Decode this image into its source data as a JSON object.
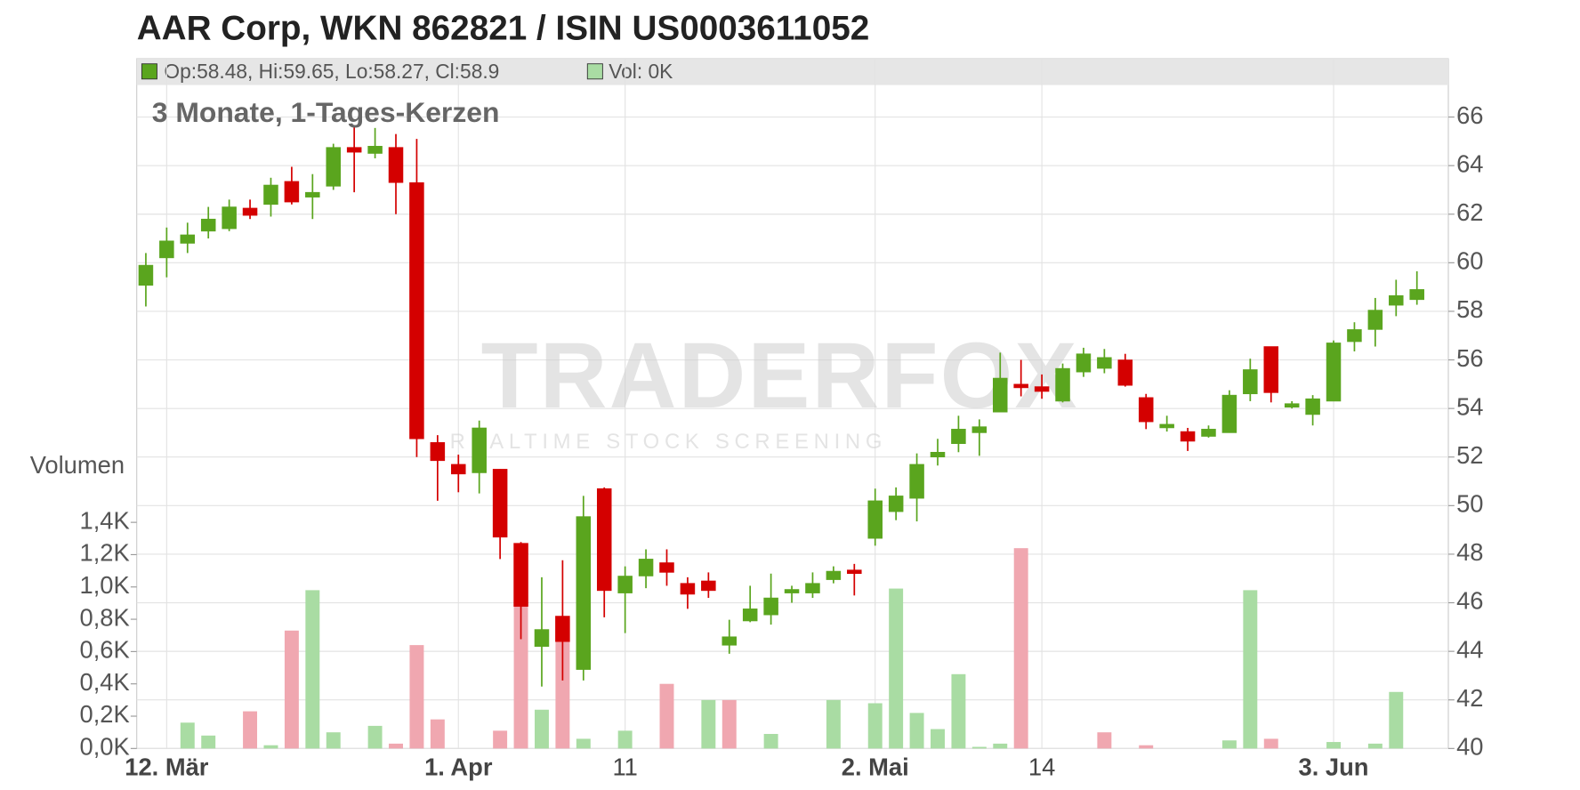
{
  "chart_data": {
    "type": "candlestick",
    "title": "AAR Corp, WKN 862821 / ISIN US0003611052",
    "subtitle": "3 Monate, 1-Tages-Kerzen",
    "legend": {
      "ohlc": "Op:58.48, Hi:59.65, Lo:58.27, Cl:58.9",
      "volume": "Vol: 0K"
    },
    "volume_label": "Volumen",
    "watermark": {
      "logo": "TRADERFOX",
      "tagline": "REALTIME STOCK SCREENING"
    },
    "categories": [
      null,
      "12. Mär",
      null,
      null,
      null,
      null,
      null,
      null,
      null,
      null,
      null,
      null,
      null,
      null,
      null,
      "1. Apr",
      null,
      null,
      null,
      null,
      null,
      null,
      null,
      "11",
      null,
      null,
      null,
      null,
      null,
      null,
      null,
      null,
      null,
      null,
      null,
      "2. Mai",
      null,
      null,
      null,
      null,
      null,
      null,
      null,
      "14",
      null,
      null,
      null,
      null,
      null,
      null,
      null,
      null,
      null,
      null,
      null,
      null,
      null,
      "3. Jun",
      null,
      null,
      null,
      null
    ],
    "open": [
      59.07,
      60.2,
      60.8,
      61.3,
      61.4,
      62.25,
      62.4,
      63.35,
      62.7,
      63.15,
      64.75,
      64.5,
      64.75,
      63.3,
      52.6,
      51.7,
      51.35,
      51.5,
      48.45,
      44.2,
      45.45,
      43.25,
      50.7,
      46.4,
      47.1,
      47.65,
      46.8,
      46.9,
      44.25,
      45.25,
      45.5,
      46.4,
      46.4,
      46.95,
      47.35,
      48.65,
      49.75,
      50.3,
      52.0,
      52.55,
      53.0,
      53.85,
      55.0,
      54.9,
      54.3,
      55.5,
      55.65,
      56.0,
      54.45,
      53.2,
      53.05,
      52.85,
      53.0,
      54.6,
      56.55,
      54.05,
      53.75,
      54.3,
      56.75,
      57.25,
      58.25,
      58.48
    ],
    "high": [
      60.4,
      61.45,
      61.65,
      62.3,
      62.6,
      62.6,
      63.5,
      63.95,
      63.65,
      64.9,
      65.6,
      65.55,
      65.3,
      65.1,
      52.9,
      52.1,
      53.5,
      51.5,
      48.5,
      47.05,
      47.75,
      50.4,
      50.75,
      47.5,
      48.2,
      48.2,
      47.05,
      47.25,
      45.3,
      46.7,
      47.2,
      46.7,
      47.25,
      47.5,
      47.6,
      50.7,
      50.75,
      52.15,
      52.75,
      53.7,
      53.55,
      56.3,
      56.0,
      55.4,
      55.85,
      56.5,
      56.45,
      56.25,
      54.6,
      53.7,
      53.2,
      53.3,
      54.75,
      56.05,
      56.55,
      54.3,
      54.55,
      56.8,
      57.55,
      58.55,
      59.3,
      59.65
    ],
    "low": [
      58.2,
      59.4,
      60.4,
      61.0,
      61.3,
      61.8,
      61.9,
      62.4,
      61.8,
      63.0,
      62.9,
      64.3,
      62.0,
      52.0,
      50.2,
      50.55,
      50.5,
      47.8,
      44.5,
      42.55,
      42.8,
      42.8,
      45.4,
      44.75,
      46.6,
      46.7,
      45.75,
      46.2,
      43.9,
      45.2,
      45.1,
      46.0,
      46.2,
      46.8,
      46.3,
      48.35,
      49.4,
      49.35,
      51.65,
      52.2,
      52.05,
      53.85,
      54.5,
      54.4,
      54.25,
      55.3,
      55.45,
      54.9,
      53.15,
      53.05,
      52.25,
      52.8,
      53.0,
      54.3,
      54.25,
      54.0,
      53.3,
      54.3,
      56.35,
      56.55,
      57.8,
      58.27
    ],
    "close": [
      59.9,
      60.9,
      61.15,
      61.8,
      62.3,
      61.95,
      63.2,
      62.5,
      62.9,
      64.75,
      64.55,
      64.8,
      63.3,
      52.75,
      51.85,
      51.3,
      53.2,
      48.7,
      45.85,
      44.9,
      44.4,
      49.55,
      46.5,
      47.1,
      47.8,
      47.25,
      46.35,
      46.5,
      44.6,
      45.75,
      46.2,
      46.55,
      46.8,
      47.3,
      47.2,
      50.2,
      50.4,
      51.7,
      52.2,
      53.15,
      53.25,
      55.25,
      54.85,
      54.7,
      55.65,
      56.25,
      56.1,
      54.95,
      53.45,
      53.35,
      52.65,
      53.15,
      54.55,
      55.6,
      54.65,
      54.2,
      54.4,
      56.7,
      57.25,
      58.05,
      58.65,
      58.9
    ],
    "volume": [
      0,
      0,
      0.16,
      0.08,
      0,
      0.23,
      0.02,
      0.73,
      0.98,
      0.1,
      0,
      0.14,
      0.03,
      0.64,
      0.18,
      0,
      0,
      0.11,
      0.89,
      0.24,
      0.74,
      0.06,
      0,
      0.11,
      0,
      0.4,
      0,
      0.3,
      0.3,
      0,
      0.09,
      0,
      0,
      0.3,
      0,
      0.28,
      0.99,
      0.22,
      0.12,
      0.46,
      0.01,
      0.03,
      1.24,
      0,
      0,
      0,
      0.1,
      0,
      0.02,
      0,
      0,
      0,
      0.05,
      0.98,
      0.06,
      0,
      0,
      0.04,
      0,
      0.03,
      0.35,
      0
    ],
    "volume_colors": [
      "#a9dca3",
      "#a9dca3",
      "#a9dca3",
      "#a9dca3",
      "#a9dca3",
      "#f0a7b0",
      "#a9dca3",
      "#f0a7b0",
      "#a9dca3",
      "#a9dca3",
      "#a9dca3",
      "#a9dca3",
      "#f0a7b0",
      "#f0a7b0",
      "#f0a7b0",
      "#a9dca3",
      "#a9dca3",
      "#f0a7b0",
      "#f0a7b0",
      "#a9dca3",
      "#f0a7b0",
      "#a9dca3",
      "#a9dca3",
      "#a9dca3",
      "#a9dca3",
      "#f0a7b0",
      "#a9dca3",
      "#a9dca3",
      "#f0a7b0",
      "#a9dca3",
      "#a9dca3",
      "#a9dca3",
      "#a9dca3",
      "#a9dca3",
      "#a9dca3",
      "#a9dca3",
      "#a9dca3",
      "#a9dca3",
      "#a9dca3",
      "#a9dca3",
      "#a9dca3",
      "#a9dca3",
      "#f0a7b0",
      "#a9dca3",
      "#a9dca3",
      "#a9dca3",
      "#f0a7b0",
      "#a9dca3",
      "#f0a7b0",
      "#a9dca3",
      "#a9dca3",
      "#a9dca3",
      "#a9dca3",
      "#a9dca3",
      "#f0a7b0",
      "#a9dca3",
      "#a9dca3",
      "#a9dca3",
      "#a9dca3",
      "#a9dca3",
      "#a9dca3",
      "#a9dca3"
    ],
    "up_color": "#5aa51e",
    "down_color": "#d40000",
    "ylim": [
      40,
      68.4
    ],
    "yticks": [
      40,
      42,
      44,
      46,
      48,
      50,
      52,
      54,
      56,
      58,
      60,
      62,
      64,
      66
    ],
    "y2lim": [
      0,
      4.27
    ],
    "y2ticks": [
      {
        "value": 0,
        "label": "0,0K"
      },
      {
        "value": 0.2,
        "label": "0,2K"
      },
      {
        "value": 0.4,
        "label": "0,4K"
      },
      {
        "value": 0.6,
        "label": "0,6K"
      },
      {
        "value": 0.8,
        "label": "0,8K"
      },
      {
        "value": 1.0,
        "label": "1,0K"
      },
      {
        "value": 1.2,
        "label": "1,2K"
      },
      {
        "value": 1.4,
        "label": "1,4K"
      }
    ],
    "grid": true
  }
}
